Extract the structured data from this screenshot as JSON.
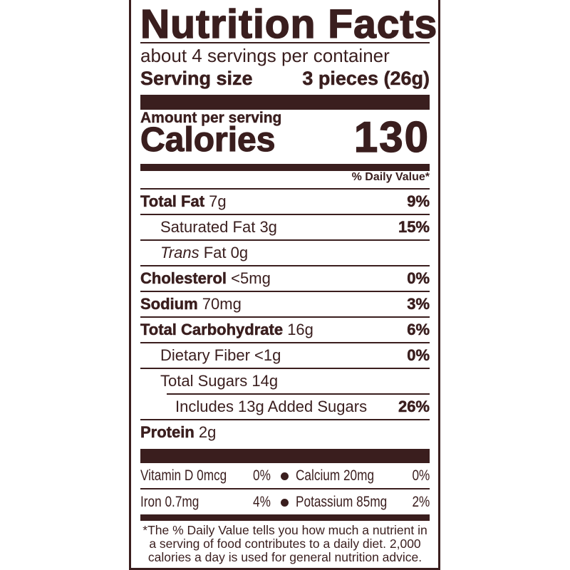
{
  "title": "Nutrition Facts",
  "servings_per_container": "about 4 servings per container",
  "serving_size": {
    "label": "Serving size",
    "value": "3 pieces (26g)"
  },
  "amount_per_serving": "Amount per serving",
  "calories": {
    "label": "Calories",
    "value": "130"
  },
  "daily_value_header": "% Daily Value*",
  "nutrients": [
    {
      "name": "Total Fat",
      "amount": "7g",
      "dv": "9%",
      "bold": true,
      "indent": 0
    },
    {
      "name": "Saturated Fat",
      "amount": "3g",
      "dv": "15%",
      "bold": false,
      "indent": 1
    },
    {
      "name": "Trans",
      "name_rest": "Fat",
      "amount": "0g",
      "dv": "",
      "bold": false,
      "indent": 1
    },
    {
      "name": "Cholesterol",
      "amount": "<5mg",
      "dv": "0%",
      "bold": true,
      "indent": 0
    },
    {
      "name": "Sodium",
      "amount": "70mg",
      "dv": "3%",
      "bold": true,
      "indent": 0
    },
    {
      "name": "Total Carbohydrate",
      "amount": "16g",
      "dv": "6%",
      "bold": true,
      "indent": 0
    },
    {
      "name": "Dietary Fiber",
      "amount": "<1g",
      "dv": "0%",
      "bold": false,
      "indent": 1
    },
    {
      "name": "Total Sugars",
      "amount": "14g",
      "dv": "",
      "bold": false,
      "indent": 1
    },
    {
      "name": "Includes 13g Added Sugars",
      "amount": "",
      "dv": "26%",
      "bold": false,
      "indent": 2
    },
    {
      "name": "Protein",
      "amount": "2g",
      "dv": "",
      "bold": true,
      "indent": 0
    }
  ],
  "vitamins": [
    [
      {
        "name": "Vitamin D 0mcg",
        "dv": "0%"
      },
      {
        "name": "Calcium 20mg",
        "dv": "0%"
      }
    ],
    [
      {
        "name": "Iron 0.7mg",
        "dv": "4%"
      },
      {
        "name": "Potassium 85mg",
        "dv": "2%"
      }
    ]
  ],
  "footnote": "*The % Daily Value tells you how much a nutrient in a serving of food contributes to a daily diet. 2,000 calories a day is used for general nutrition advice.",
  "colors": {
    "ink": "#3a1e1e",
    "background": "#ffffff"
  }
}
